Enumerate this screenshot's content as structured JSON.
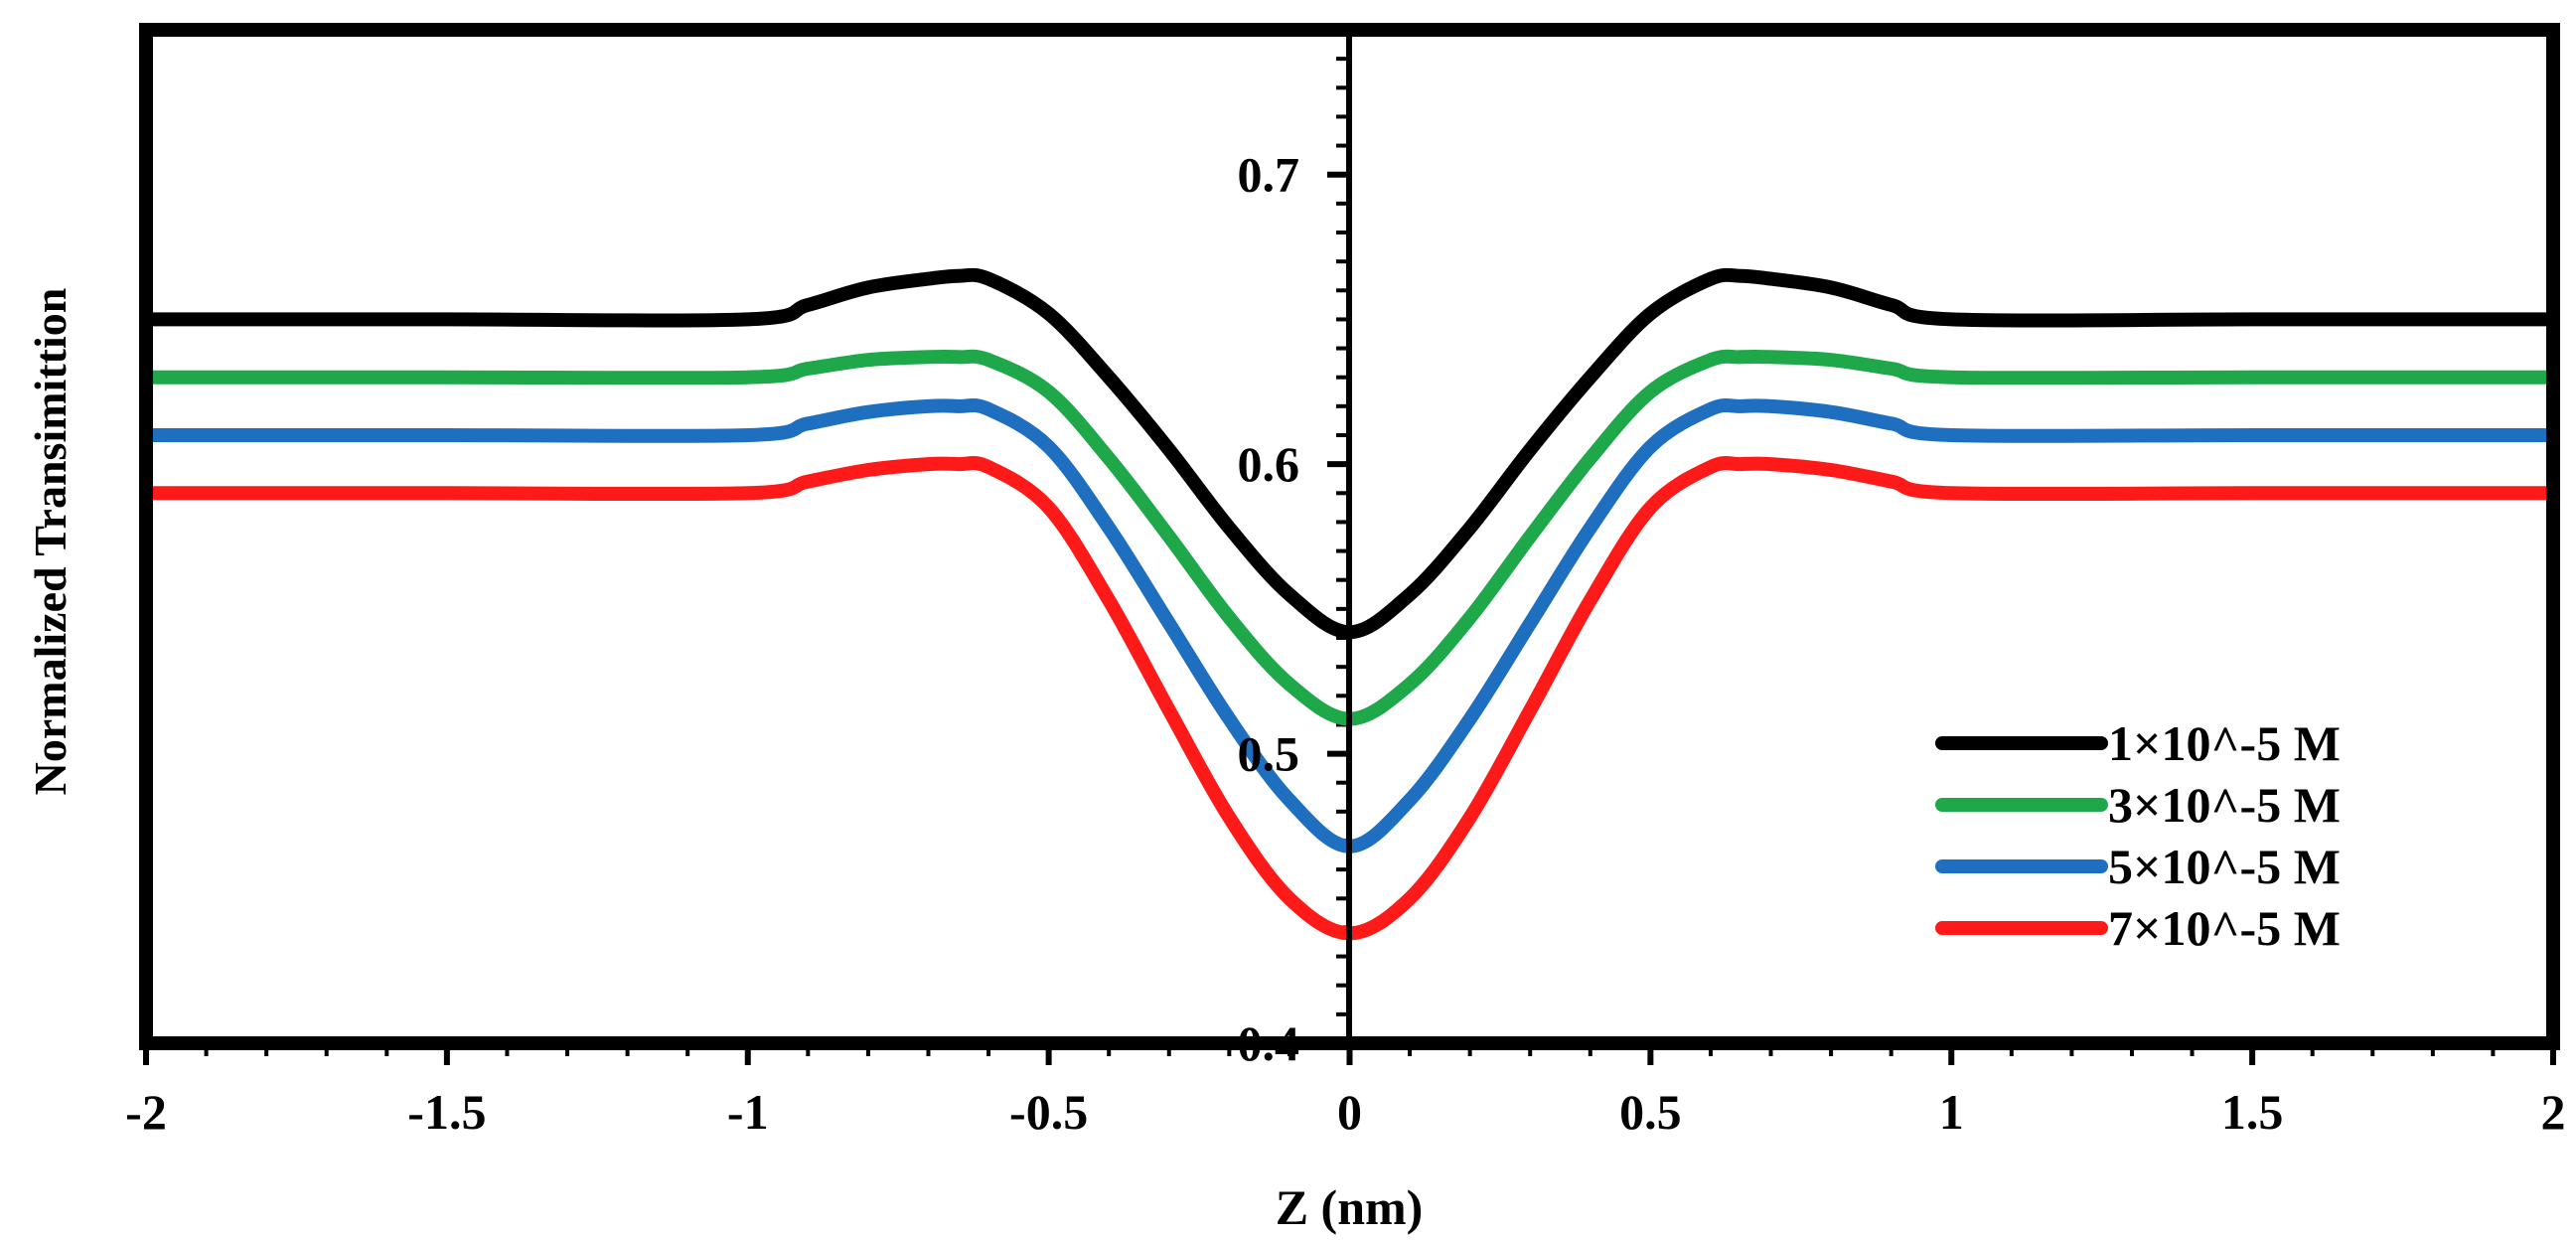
{
  "chart_data": {
    "type": "line",
    "title": "",
    "xlabel": "Z (nm)",
    "ylabel": "Normalized Transimittion",
    "xlim": [
      -2,
      2
    ],
    "ylim": [
      0.4,
      0.75
    ],
    "xticks": [
      -2,
      -1.5,
      -1,
      -0.5,
      0,
      0.5,
      1,
      1.5,
      2
    ],
    "xtick_labels": [
      "-2",
      "-1.5",
      "-1",
      "-0.5",
      "0",
      "0.5",
      "1",
      "1.5",
      "2"
    ],
    "yticks": [
      0.4,
      0.5,
      0.6,
      0.7
    ],
    "ytick_labels": [
      "0.4",
      "0.5",
      "0.6",
      "0.7"
    ],
    "grid": false,
    "legend_position": "bottom-right",
    "x": [
      -2,
      -1.5,
      -1,
      -0.9,
      -0.8,
      -0.7,
      -0.65,
      -0.6,
      -0.5,
      -0.4,
      -0.3,
      -0.2,
      -0.1,
      0,
      0.1,
      0.2,
      0.3,
      0.4,
      0.5,
      0.6,
      0.65,
      0.7,
      0.8,
      0.9,
      1,
      1.5,
      2
    ],
    "series": [
      {
        "name": "1×10^-5 M",
        "color": "#000000",
        "values": [
          0.65,
          0.65,
          0.65,
          0.655,
          0.661,
          0.664,
          0.665,
          0.664,
          0.652,
          0.63,
          0.605,
          0.578,
          0.555,
          0.542,
          0.555,
          0.578,
          0.605,
          0.63,
          0.652,
          0.664,
          0.665,
          0.664,
          0.661,
          0.655,
          0.65,
          0.65,
          0.65
        ]
      },
      {
        "name": "3×10^-5 M",
        "color": "#1fa84a",
        "values": [
          0.63,
          0.63,
          0.63,
          0.633,
          0.636,
          0.637,
          0.637,
          0.636,
          0.625,
          0.602,
          0.575,
          0.547,
          0.524,
          0.512,
          0.524,
          0.547,
          0.575,
          0.602,
          0.625,
          0.636,
          0.637,
          0.637,
          0.636,
          0.633,
          0.63,
          0.63,
          0.63
        ]
      },
      {
        "name": "5×10^-5 M",
        "color": "#1f6fc0",
        "values": [
          0.61,
          0.61,
          0.61,
          0.614,
          0.618,
          0.62,
          0.62,
          0.619,
          0.606,
          0.578,
          0.545,
          0.512,
          0.484,
          0.468,
          0.484,
          0.512,
          0.545,
          0.578,
          0.606,
          0.619,
          0.62,
          0.62,
          0.618,
          0.614,
          0.61,
          0.61,
          0.61
        ]
      },
      {
        "name": "7×10^-5 M",
        "color": "#ff1a1a",
        "values": [
          0.59,
          0.59,
          0.59,
          0.594,
          0.598,
          0.6,
          0.6,
          0.599,
          0.585,
          0.553,
          0.515,
          0.478,
          0.45,
          0.438,
          0.45,
          0.478,
          0.515,
          0.553,
          0.585,
          0.599,
          0.6,
          0.6,
          0.598,
          0.594,
          0.59,
          0.59,
          0.59
        ]
      }
    ]
  }
}
